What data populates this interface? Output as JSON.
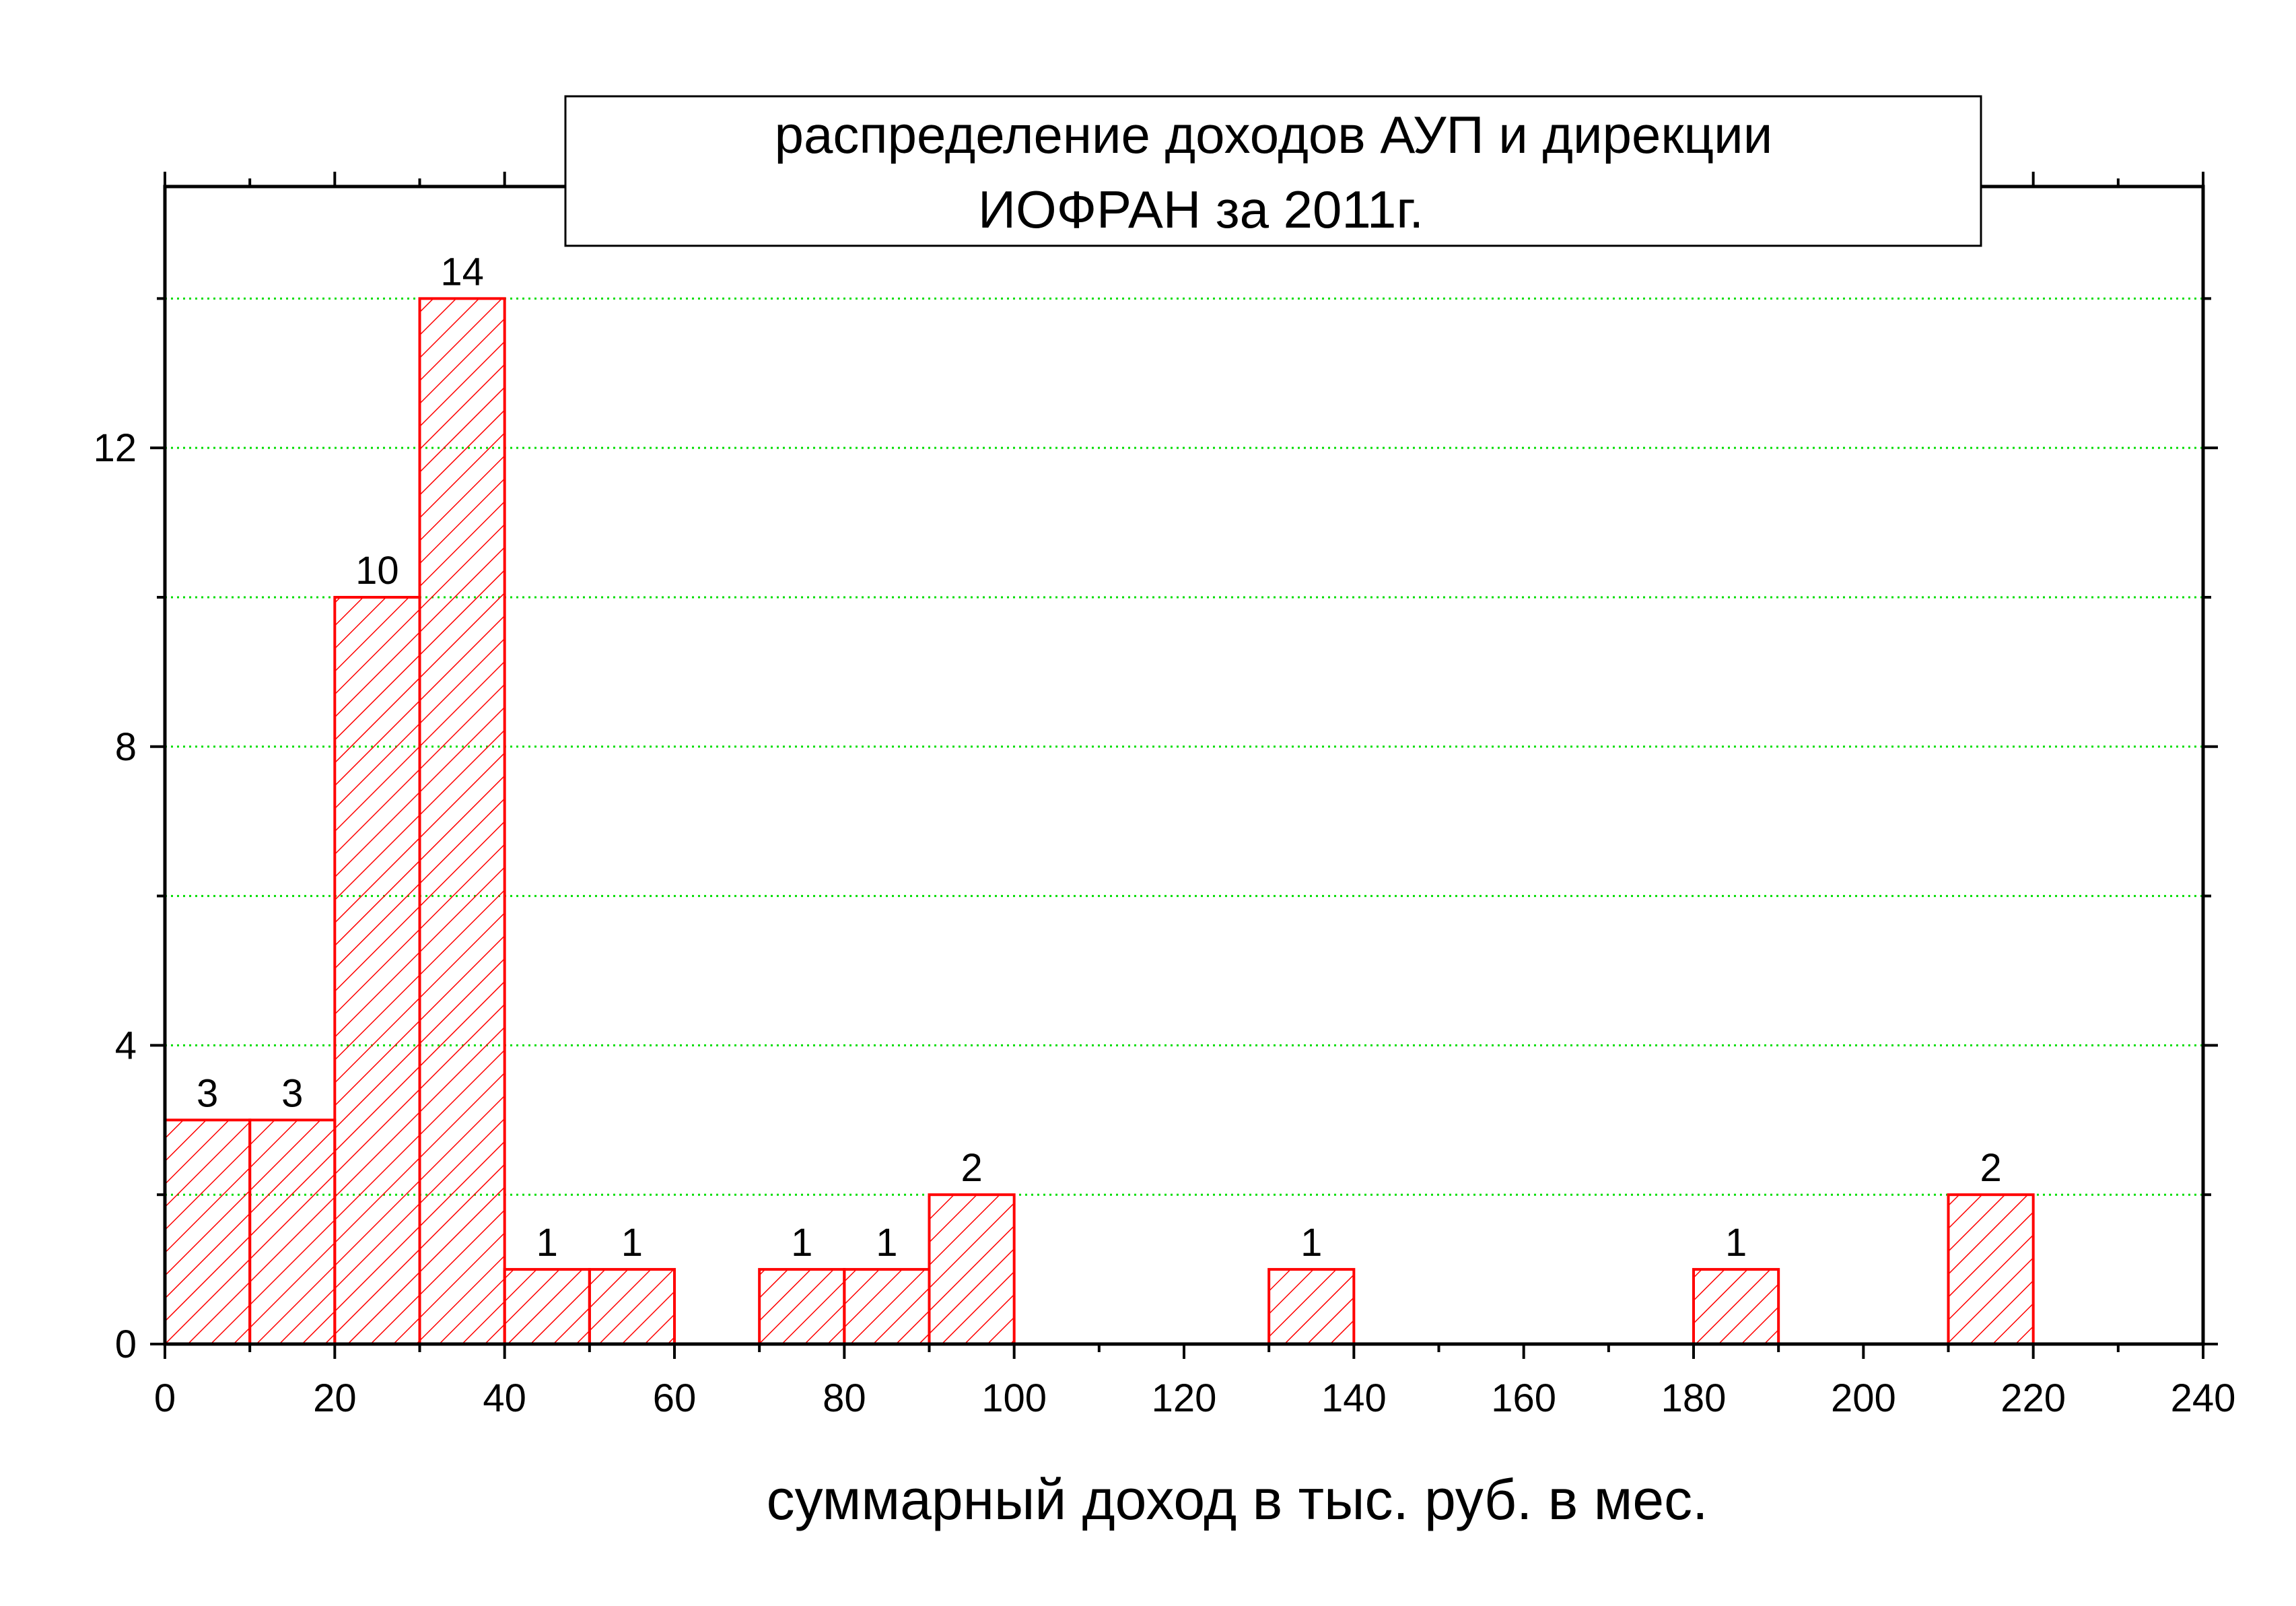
{
  "chart_data": {
    "type": "bar",
    "title_lines": [
      "распределение доходов АУП и дирекции",
      "ИОФРАН за 2011г."
    ],
    "xlabel": "суммарный доход в тыс. руб. в мес.",
    "ylabel": "",
    "xlim": [
      0,
      240
    ],
    "ylim": [
      0,
      15.5
    ],
    "x_ticks": [
      0,
      20,
      40,
      60,
      80,
      100,
      120,
      140,
      160,
      180,
      200,
      220,
      240
    ],
    "y_ticks": [
      0,
      4,
      8,
      12
    ],
    "grid": true,
    "bar_style": "hatched",
    "series": [
      {
        "bins": [
          {
            "from": 0,
            "to": 10,
            "value": 3
          },
          {
            "from": 10,
            "to": 20,
            "value": 3
          },
          {
            "from": 20,
            "to": 30,
            "value": 10
          },
          {
            "from": 30,
            "to": 40,
            "value": 14
          },
          {
            "from": 40,
            "to": 50,
            "value": 1
          },
          {
            "from": 50,
            "to": 60,
            "value": 1
          },
          {
            "from": 70,
            "to": 80,
            "value": 1
          },
          {
            "from": 80,
            "to": 90,
            "value": 1
          },
          {
            "from": 90,
            "to": 100,
            "value": 2
          },
          {
            "from": 130,
            "to": 140,
            "value": 1
          },
          {
            "from": 180,
            "to": 190,
            "value": 1
          },
          {
            "from": 210,
            "to": 220,
            "value": 2
          }
        ]
      }
    ],
    "colors": {
      "bars": "#ff0000",
      "grid": "#00dd00",
      "axis": "#000000"
    }
  }
}
